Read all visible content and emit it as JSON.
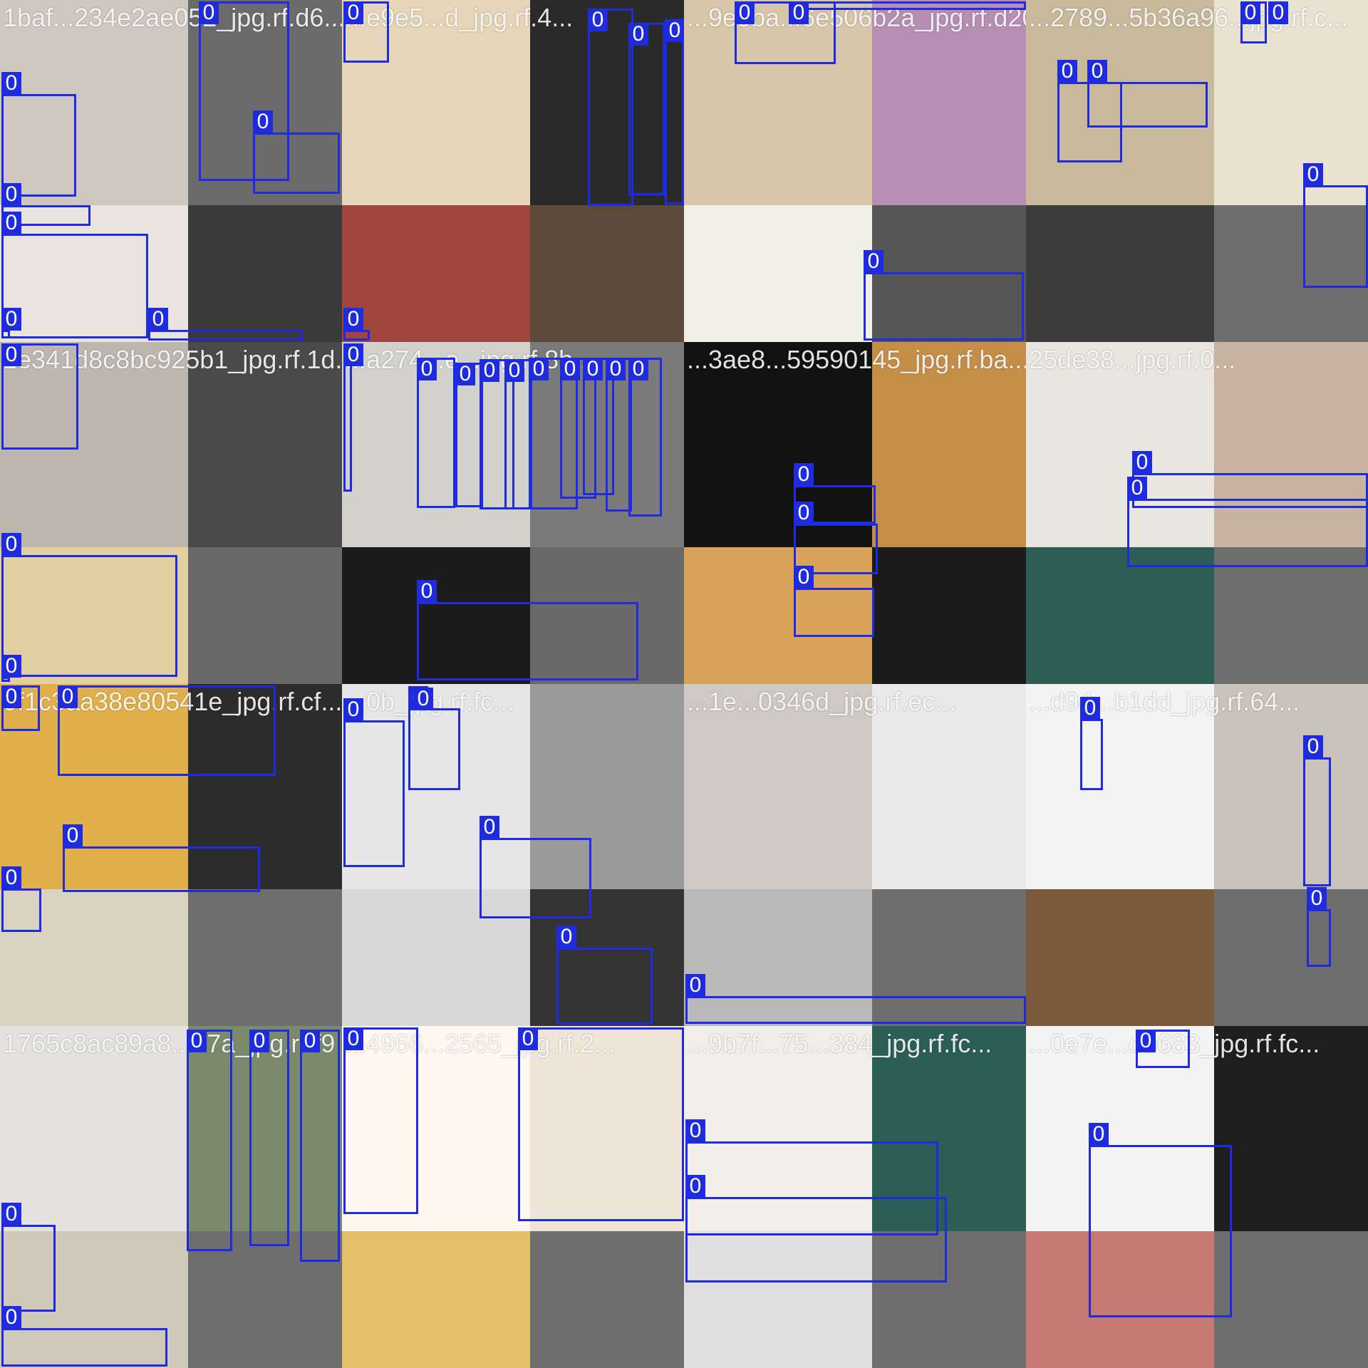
{
  "image": {
    "kind": "object-detection training batch mosaic",
    "box_color": "#1f2bdf",
    "label_text_color": "#ffffff"
  },
  "tiles": [
    {
      "filename": "1baf...234e2ae052_jpg.rf.d6...",
      "boxes": [
        {
          "label": "0"
        },
        {
          "label": "0"
        },
        {
          "label": "0"
        },
        {
          "label": "0"
        },
        {
          "label": "0"
        },
        {
          "label": "0"
        },
        {
          "label": "0"
        }
      ]
    },
    {
      "filename": "...e9e5...d_jpg.rf.4...",
      "boxes": [
        {
          "label": "0"
        },
        {
          "label": "0"
        },
        {
          "label": "0"
        },
        {
          "label": "0"
        },
        {
          "label": "0"
        }
      ]
    },
    {
      "filename": "...9e5ba...6e506b2a_jpg.rf.d20...",
      "boxes": [
        {
          "label": "0"
        },
        {
          "label": "0"
        },
        {
          "label": "0"
        }
      ]
    },
    {
      "filename": "...2789...5b36a96...jpg.rf.c...",
      "boxes": [
        {
          "label": "0"
        },
        {
          "label": "0"
        },
        {
          "label": "0"
        },
        {
          "label": "0"
        },
        {
          "label": "0"
        }
      ]
    },
    {
      "filename": "1e341d8c8bc925b1_jpg.rf.1d...",
      "boxes": [
        {
          "label": "0"
        },
        {
          "label": "0"
        },
        {
          "label": "0"
        }
      ]
    },
    {
      "filename": "...a274...e...jpg.rf.8b...",
      "boxes": [
        {
          "label": "0"
        },
        {
          "label": "0"
        },
        {
          "label": "0"
        },
        {
          "label": "0"
        },
        {
          "label": "0"
        },
        {
          "label": "0"
        },
        {
          "label": "0"
        },
        {
          "label": "0"
        },
        {
          "label": "0"
        },
        {
          "label": "0"
        },
        {
          "label": "0"
        }
      ]
    },
    {
      "filename": "...3ae8...59590145_jpg.rf.ba...",
      "boxes": [
        {
          "label": "0"
        },
        {
          "label": "0"
        },
        {
          "label": "0"
        }
      ]
    },
    {
      "filename": "25de38...jpg.rf.0...",
      "boxes": [
        {
          "label": "0"
        },
        {
          "label": "0"
        }
      ]
    },
    {
      "filename": "0f1c3aa38e80541e_jpg.rf.cf...",
      "boxes": [
        {
          "label": "0"
        },
        {
          "label": "0"
        },
        {
          "label": "0"
        },
        {
          "label": "0"
        },
        {
          "label": "0"
        }
      ]
    },
    {
      "filename": "...0b_jpg.rf.fc...",
      "boxes": [
        {
          "label": "0"
        },
        {
          "label": "0"
        },
        {
          "label": "0"
        },
        {
          "label": "0"
        },
        {
          "label": "0"
        }
      ]
    },
    {
      "filename": "...1e...0346d_jpg.rf.ec...",
      "boxes": [
        {
          "label": "0"
        }
      ]
    },
    {
      "filename": "...d94...b1dd_jpg.rf.64...",
      "boxes": [
        {
          "label": "0"
        },
        {
          "label": "0"
        },
        {
          "label": "0"
        }
      ]
    },
    {
      "filename": "1765c8ac89a8...07a_jpg.rf.f9...",
      "boxes": [
        {
          "label": "0"
        },
        {
          "label": "0"
        },
        {
          "label": "0"
        },
        {
          "label": "0"
        },
        {
          "label": "0"
        }
      ]
    },
    {
      "filename": "...4966...2565_jpg.rf.2...",
      "boxes": [
        {
          "label": "0"
        },
        {
          "label": "0"
        }
      ]
    },
    {
      "filename": "...9b7f...75...384_jpg.rf.fc...",
      "boxes": [
        {
          "label": "0"
        },
        {
          "label": "0"
        }
      ]
    },
    {
      "filename": "...0e7e...db683_jpg.rf.fc...",
      "boxes": [
        {
          "label": "0"
        },
        {
          "label": "0"
        }
      ]
    }
  ]
}
